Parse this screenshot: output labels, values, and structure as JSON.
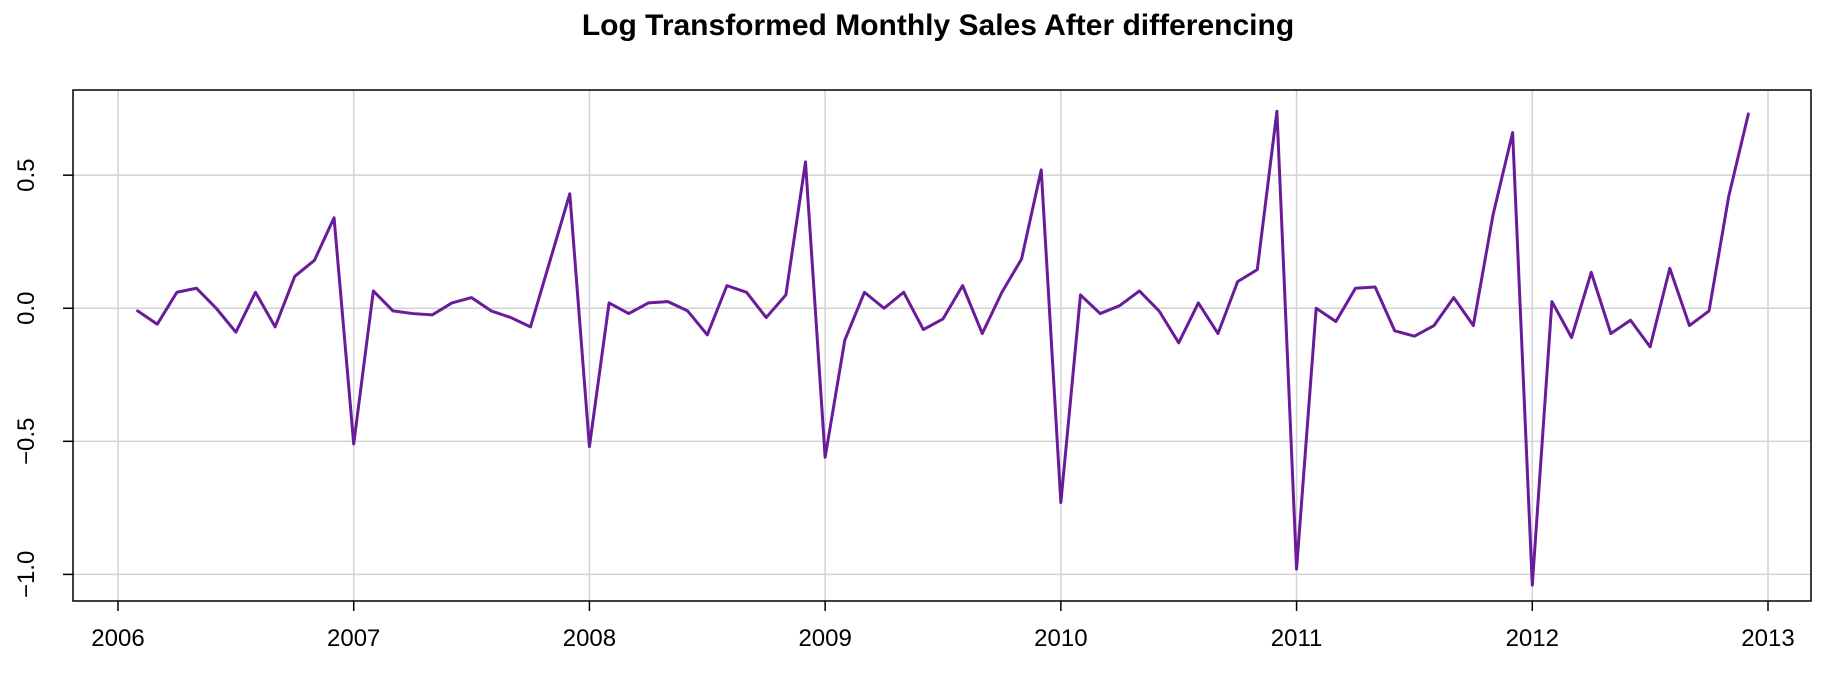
{
  "chart_data": {
    "type": "line",
    "title": "Log Transformed Monthly Sales After differencing",
    "xlabel": "",
    "ylabel": "",
    "xlim": [
      2006.0,
      2013.0
    ],
    "ylim": [
      -1.1,
      0.82
    ],
    "x_ticks": [
      2006,
      2007,
      2008,
      2009,
      2010,
      2011,
      2012,
      2013
    ],
    "x_tick_labels": [
      "2006",
      "2007",
      "2008",
      "2009",
      "2010",
      "2011",
      "2012",
      "2013"
    ],
    "y_ticks": [
      -1.0,
      -0.5,
      0.0,
      0.5
    ],
    "y_tick_labels": [
      "−1.0",
      "−0.5",
      "0.0",
      "0.5"
    ],
    "grid": true,
    "series": [
      {
        "color": "#6A1B9A",
        "x_start": 2006.0833,
        "x_step": 0.0833333,
        "values": [
          -0.01,
          -0.06,
          0.06,
          0.075,
          0.0,
          -0.09,
          0.06,
          -0.07,
          0.12,
          0.18,
          0.34,
          -0.51,
          0.065,
          -0.01,
          -0.02,
          -0.025,
          0.02,
          0.04,
          -0.01,
          -0.035,
          -0.07,
          0.18,
          0.43,
          -0.52,
          0.02,
          -0.02,
          0.02,
          0.025,
          -0.01,
          -0.1,
          0.085,
          0.06,
          -0.035,
          0.05,
          0.55,
          -0.56,
          -0.12,
          0.06,
          0.0,
          0.06,
          -0.08,
          -0.04,
          0.085,
          -0.095,
          0.06,
          0.185,
          0.52,
          -0.73,
          0.05,
          -0.02,
          0.01,
          0.065,
          -0.01,
          -0.13,
          0.02,
          -0.095,
          0.1,
          0.145,
          0.74,
          -0.98,
          0.0,
          -0.05,
          0.075,
          0.08,
          -0.085,
          -0.105,
          -0.065,
          0.04,
          -0.065,
          0.35,
          0.66,
          -1.04,
          0.025,
          -0.11,
          0.135,
          -0.095,
          -0.045,
          -0.145,
          0.15,
          -0.065,
          -0.01,
          0.42,
          0.73
        ]
      }
    ]
  }
}
